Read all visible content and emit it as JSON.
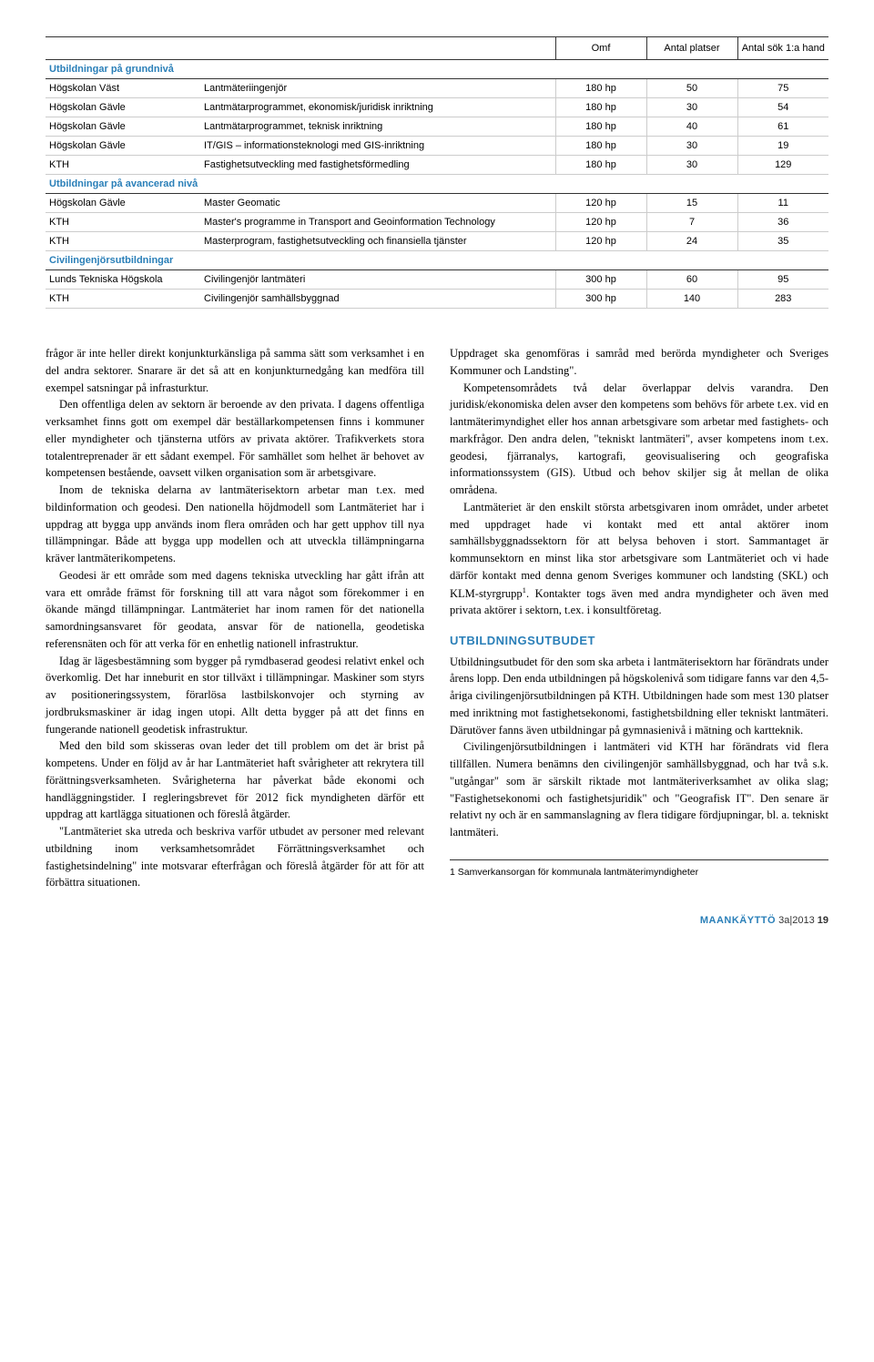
{
  "table": {
    "headers": {
      "omf": "Omf",
      "antal": "Antal platser",
      "sok": "Antal sök 1:a hand"
    },
    "sections": [
      {
        "title": "Utbildningar på grundnivå",
        "rows": [
          {
            "inst": "Högskolan Väst",
            "prog": "Lantmäteriingenjör",
            "omf": "180 hp",
            "ant": "50",
            "sok": "75"
          },
          {
            "inst": "Högskolan Gävle",
            "prog": "Lantmätarprogrammet, ekonomisk/juridisk inriktning",
            "omf": "180 hp",
            "ant": "30",
            "sok": "54"
          },
          {
            "inst": "Högskolan Gävle",
            "prog": "Lantmätarprogrammet, teknisk inriktning",
            "omf": "180 hp",
            "ant": "40",
            "sok": "61"
          },
          {
            "inst": "Högskolan Gävle",
            "prog": "IT/GIS – informationsteknologi med GIS-inriktning",
            "omf": "180 hp",
            "ant": "30",
            "sok": "19"
          },
          {
            "inst": "KTH",
            "prog": "Fastighetsutveckling med fastighetsförmedling",
            "omf": "180 hp",
            "ant": "30",
            "sok": "129"
          }
        ]
      },
      {
        "title": "Utbildningar på avancerad nivå",
        "rows": [
          {
            "inst": "Högskolan Gävle",
            "prog": "Master Geomatic",
            "omf": "120 hp",
            "ant": "15",
            "sok": "11"
          },
          {
            "inst": "KTH",
            "prog": "Master's programme in Transport and Geoinformation Technology",
            "omf": "120 hp",
            "ant": "7",
            "sok": "36"
          },
          {
            "inst": "KTH",
            "prog": "Masterprogram, fastighetsutveckling och finansiella tjänster",
            "omf": "120 hp",
            "ant": "24",
            "sok": "35"
          }
        ]
      },
      {
        "title": "Civilingenjörsutbildningar",
        "rows": [
          {
            "inst": "Lunds Tekniska Högskola",
            "prog": "Civilingenjör lantmäteri",
            "omf": "300 hp",
            "ant": "60",
            "sok": "95"
          },
          {
            "inst": "KTH",
            "prog": "Civilingenjör samhällsbyggnad",
            "omf": "300 hp",
            "ant": "140",
            "sok": "283"
          }
        ]
      }
    ]
  },
  "body": {
    "p1": "frågor är inte heller direkt konjunkturkänsliga på samma sätt som verksamhet i en del andra sektorer. Snarare är det så att en konjunkturnedgång kan medföra till exempel satsningar på infrasturktur.",
    "p2": "Den offentliga delen av sektorn är beroende av den privata. I dagens offentliga verksamhet finns gott om exempel där beställarkompetensen finns i kommuner eller myndigheter och tjänsterna utförs av privata aktörer. Trafikverkets stora totalentreprenader är ett sådant exempel. För samhället som helhet är behovet av kompetensen bestående, oavsett vilken organisation som är arbetsgivare.",
    "p3": "Inom de tekniska delarna av lantmäterisektorn arbetar man t.ex. med bildinformation och geodesi. Den nationella höjdmodell som Lantmäteriet har i uppdrag att bygga upp används inom flera områden och har gett upphov till nya tillämpningar. Både att bygga upp modellen och att utveckla tillämpningarna kräver lantmäterikompetens.",
    "p4": "Geodesi är ett område som med dagens tekniska utveckling har gått ifrån att vara ett område främst för forskning till att vara något som förekommer i en ökande mängd tillämpningar. Lantmäteriet har inom ramen för det nationella samordningsansvaret för geodata, ansvar för de nationella, geodetiska referensnäten och för att verka för en enhetlig nationell infrastruktur.",
    "p5": "Idag är lägesbestämning som bygger på rymdbaserad geodesi relativt enkel och överkomlig. Det har inneburit en stor tillväxt i tillämpningar. Maskiner som styrs av positioneringssystem, förarlösa lastbilskonvojer och styrning av jordbruksmaskiner är idag ingen utopi. Allt detta bygger på att det finns en fungerande nationell geodetisk infrastruktur.",
    "p6": "Med den bild som skisseras ovan leder det till problem om det är brist på kompetens. Under en följd av år har Lantmäteriet haft svårigheter att rekrytera till förättningsverksamheten. Svårigheterna har påverkat både ekonomi och handläggningstider. I regleringsbrevet för 2012 fick myndigheten därför ett uppdrag att kartlägga situationen och föreslå åtgärder.",
    "p7": "\"Lantmäteriet ska utreda och beskriva varför utbudet av personer med relevant utbildning inom verksamhetsområdet Förrättningsverksamhet och fastighetsindelning\" inte motsvarar efterfrågan och föreslå åtgärder för att för att förbättra situationen.",
    "p8": "Uppdraget ska genomföras i samråd med berörda myndigheter och Sveriges Kommuner och Landsting\".",
    "p9a": "Kompetensområdets två delar överlappar delvis varandra. Den juridisk/ekonomiska delen avser den kompetens som behövs för arbete t.ex. vid en lantmäterimyndighet eller hos annan arbetsgivare som arbetar med fastighets- och markfrågor. Den andra delen, \"tekniskt lantmäteri\", avser kompetens inom t.ex. geodesi, fjärranalys, kartografi, geovisualisering och geografiska informationssystem (GIS). Utbud och behov skiljer sig åt mellan de olika områdena.",
    "p9b": "Lantmäteriet är den enskilt största arbetsgivaren inom området, under arbetet med uppdraget hade vi kontakt med ett antal aktörer inom samhällsbyggnadssektorn för att belysa behoven i stort. Sammantaget är kommunsektorn en minst lika stor arbetsgivare som Lantmäteriet och vi hade därför kontakt med denna genom Sveriges kommuner och landsting (SKL) och KLM-styrgrupp",
    "p9c": ". Kontakter togs även med andra myndigheter och även med privata aktörer i sektorn, t.ex. i konsultföretag.",
    "sectionTitle": "UTBILDNINGSUTBUDET",
    "p10": "Utbildningsutbudet för den som ska arbeta i lantmäterisektorn har förändrats under årens lopp. Den enda utbildningen på högskolenivå som tidigare fanns var den 4,5-åriga civilingenjörsutbildningen på KTH. Utbildningen hade som mest 130 platser med inriktning mot fastighetsekonomi, fastighetsbildning eller tekniskt lantmäteri. Därutöver fanns även utbildningar på gymnasienivå i mätning och kartteknik.",
    "p11": "Civilingenjörsutbildningen i lantmäteri vid KTH har förändrats vid flera tillfällen. Numera benämns den civilingenjör samhällsbyggnad, och har två s.k. \"utgångar\" som är särskilt riktade mot lantmäteriverksamhet av olika slag; \"Fastighetsekonomi och fastighetsjuridik\" och \"Geografisk IT\". Den senare är relativt ny och är en sammanslagning av flera tidigare fördjupningar, bl. a. tekniskt lantmäteri.",
    "footnote": "1    Samverkansorgan för kommunala lantmäterimyndigheter"
  },
  "footer": {
    "mag": "MAANKÄYTTÖ",
    "issue": " 3a|2013   ",
    "page": "19"
  },
  "colors": {
    "accent": "#2a7fb8"
  }
}
